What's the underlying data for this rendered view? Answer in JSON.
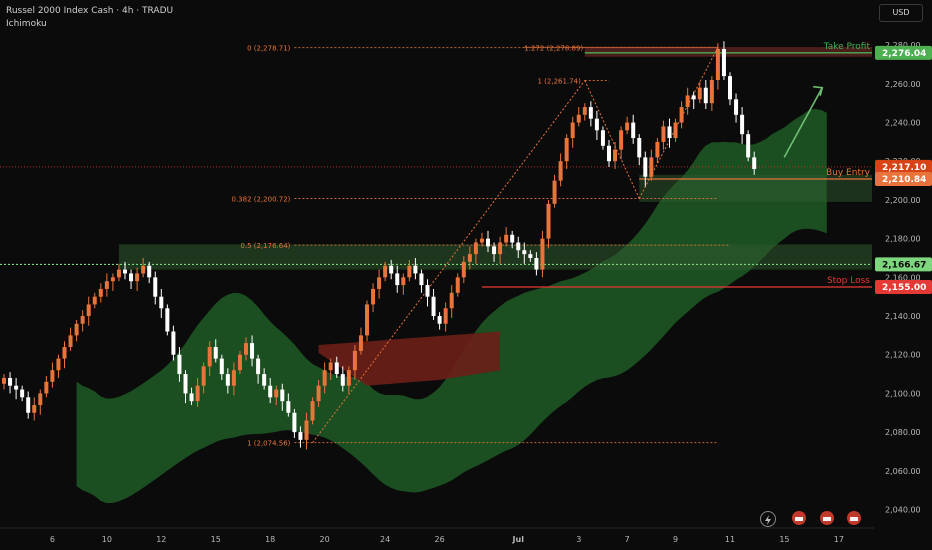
{
  "header": {
    "title": "Russel 2000 Index Cash · 4h · TRADU",
    "indicator": "Ichimoku"
  },
  "price_axis": {
    "currency": "USD"
  },
  "colors": {
    "background": "#0b0b0b",
    "candle_up": "#e8743b",
    "candle_down": "#ffffff",
    "cloud_bull": "#1f5a24",
    "cloud_bear": "#6b1f17",
    "fib_line": "#e8743b",
    "take_profit": "#4caf50",
    "buy_entry": "#e8743b",
    "stop_loss": "#e53935",
    "support_zone": "#2f5a2f"
  },
  "chart_data": {
    "type": "candlestick",
    "y_ticks": [
      "2,040.00",
      "2,060.00",
      "2,080.00",
      "2,100.00",
      "2,120.00",
      "2,140.00",
      "2,160.00",
      "2,180.00",
      "2,200.00",
      "2,220.00",
      "2,240.00",
      "2,260.00",
      "2,280.00"
    ],
    "ylim": [
      2032,
      2293
    ],
    "x_ticks": [
      "6",
      "10",
      "12",
      "15",
      "18",
      "20",
      "24",
      "26",
      "Jul",
      "3",
      "7",
      "9",
      "11",
      "15",
      "17"
    ],
    "fibonacci": [
      {
        "label": "0 (2,278.71)",
        "value": 2278.71
      },
      {
        "label": "1.272 (2,278.89)",
        "value": 2278.89
      },
      {
        "label": "1 (2,261.74)",
        "value": 2261.74
      },
      {
        "label": "0.382 (2,200.72)",
        "value": 2200.72
      },
      {
        "label": "0.5 (2,176.64)",
        "value": 2176.64
      },
      {
        "label": "1 (2,074.56)",
        "value": 2074.56
      }
    ],
    "levels": [
      {
        "name": "Take Profit",
        "value": 2276.04,
        "label": "2,276.04"
      },
      {
        "name": "Buy Entry",
        "value": 2210.84,
        "label": "2,210.84"
      },
      {
        "name": "Stop Loss",
        "value": 2155.0,
        "label": "2,155.00"
      }
    ],
    "price_labels": [
      {
        "value": 2217.1,
        "label": "2,217.10"
      },
      {
        "value": 2166.67,
        "label": "2,166.67"
      }
    ],
    "annotations": [
      "Take Profit",
      "Buy Entry",
      "Stop Loss"
    ],
    "closes": [
      2108,
      2104,
      2102,
      2098,
      2090,
      2094,
      2100,
      2106,
      2112,
      2118,
      2124,
      2130,
      2136,
      2140,
      2146,
      2150,
      2154,
      2158,
      2160,
      2164,
      2162,
      2158,
      2162,
      2166,
      2160,
      2150,
      2144,
      2132,
      2120,
      2110,
      2100,
      2096,
      2104,
      2114,
      2124,
      2118,
      2110,
      2104,
      2112,
      2120,
      2126,
      2118,
      2110,
      2104,
      2098,
      2102,
      2096,
      2090,
      2080,
      2076,
      2086,
      2096,
      2104,
      2112,
      2116,
      2110,
      2104,
      2112,
      2122,
      2130,
      2146,
      2154,
      2160,
      2166,
      2162,
      2156,
      2160,
      2166,
      2162,
      2156,
      2150,
      2140,
      2136,
      2144,
      2152,
      2160,
      2168,
      2172,
      2178,
      2180,
      2176,
      2172,
      2178,
      2182,
      2178,
      2174,
      2172,
      2170,
      2164,
      2180,
      2198,
      2210,
      2220,
      2232,
      2240,
      2244,
      2248,
      2242,
      2236,
      2228,
      2220,
      2226,
      2236,
      2240,
      2232,
      2222,
      2212,
      2222,
      2230,
      2238,
      2232,
      2240,
      2248,
      2254,
      2252,
      2258,
      2250,
      2262,
      2278,
      2264,
      2252,
      2244,
      2234,
      2222,
      2216
    ]
  }
}
